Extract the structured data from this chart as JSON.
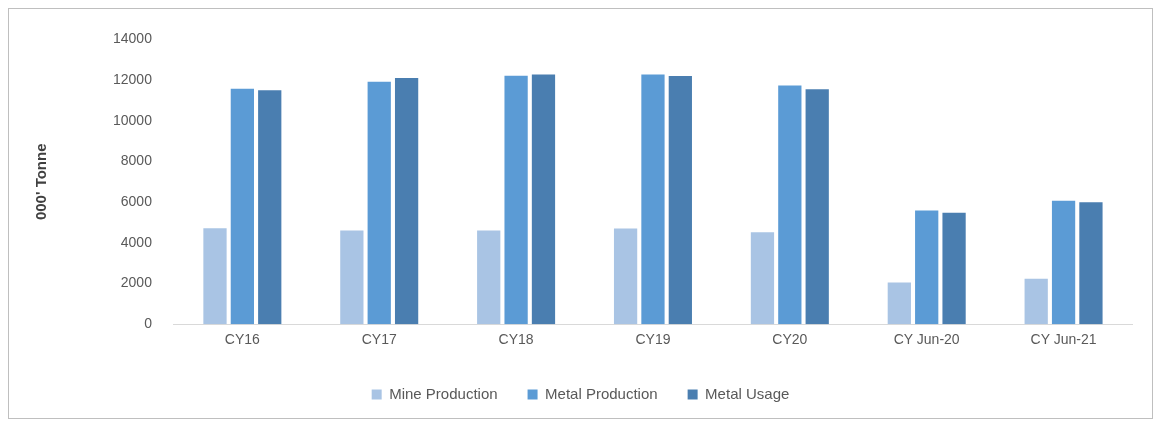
{
  "chart_data": {
    "type": "bar",
    "ylabel": "000' Tonne",
    "categories": [
      "CY16",
      "CY17",
      "CY18",
      "CY19",
      "CY20",
      "CY Jun-20",
      "CY Jun-21"
    ],
    "series": [
      {
        "name": "Mine Production",
        "color": "#a9c4e4",
        "values": [
          4720,
          4600,
          4600,
          4710,
          4520,
          2050,
          2230
        ]
      },
      {
        "name": "Metal Production",
        "color": "#5b9bd5",
        "values": [
          11580,
          11920,
          12210,
          12270,
          11730,
          5590,
          6070
        ]
      },
      {
        "name": "Metal Usage",
        "color": "#4a7eb0",
        "values": [
          11500,
          12100,
          12270,
          12200,
          11550,
          5480,
          6000
        ]
      }
    ],
    "ylim": [
      0,
      14000
    ],
    "yticks": [
      0,
      2000,
      4000,
      6000,
      8000,
      10000,
      12000,
      14000
    ],
    "grid": false,
    "legend": "bottom"
  }
}
